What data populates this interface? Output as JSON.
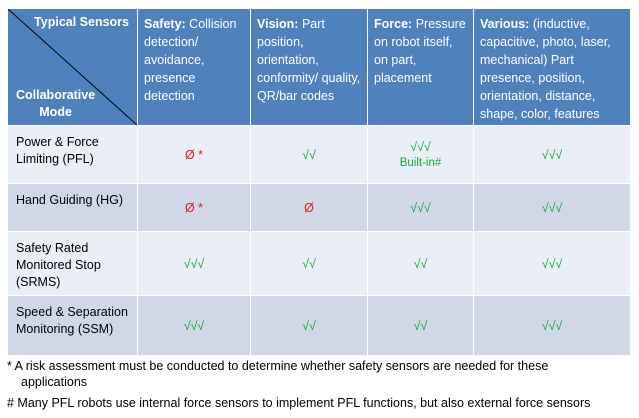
{
  "header": {
    "corner_top": "Typical Sensors",
    "corner_bottom": "Collaborative Mode",
    "columns": [
      {
        "title": "Safety:",
        "desc": "Collision detection/ avoidance, presence detection"
      },
      {
        "title": "Vision:",
        "desc": "Part position, orientation, conformity/ quality, QR/bar codes"
      },
      {
        "title": "Force:",
        "desc": "Pressure on robot itself, on part, placement"
      },
      {
        "title": "Various:",
        "desc": "(inductive, capacitive, photo, laser, mechanical) Part presence, position, orientation,  distance, shape, color, features"
      }
    ]
  },
  "rows": [
    {
      "mode": "Power & Force Limiting (PFL)",
      "cells": [
        {
          "text": "Ø *",
          "color": "red"
        },
        {
          "text": "√√",
          "color": "green"
        },
        {
          "text": "√√√",
          "sub": "Built-in#",
          "color": "green"
        },
        {
          "text": "√√√",
          "color": "green"
        }
      ]
    },
    {
      "mode": "Hand Guiding (HG)",
      "cells": [
        {
          "text": "Ø *",
          "color": "red"
        },
        {
          "text": "Ø",
          "color": "red"
        },
        {
          "text": "√√√",
          "color": "green"
        },
        {
          "text": "√√√",
          "color": "green"
        }
      ]
    },
    {
      "mode": "Safety Rated Monitored Stop (SRMS)",
      "cells": [
        {
          "text": "√√√",
          "color": "green"
        },
        {
          "text": "√√",
          "color": "green"
        },
        {
          "text": "√√",
          "color": "green"
        },
        {
          "text": "√√√",
          "color": "green"
        }
      ]
    },
    {
      "mode": "Speed & Separation Monitoring (SSM)",
      "cells": [
        {
          "text": "√√√",
          "color": "green"
        },
        {
          "text": "√√",
          "color": "green"
        },
        {
          "text": "√√",
          "color": "green"
        },
        {
          "text": "√√√",
          "color": "green"
        }
      ]
    }
  ],
  "footnotes": {
    "note1_line1": "* A risk assessment must be conducted to determine whether safety sensors are needed for these",
    "note1_line2": "applications",
    "note2": "# Many PFL robots use internal force sensors to implement PFL functions, but also external force sensors"
  },
  "colors": {
    "header_bg": "#4f81bd",
    "row_light": "#e9eef7",
    "row_dark": "#d0d8e8",
    "check_green": "#17a63a",
    "null_red": "#e0201f"
  }
}
